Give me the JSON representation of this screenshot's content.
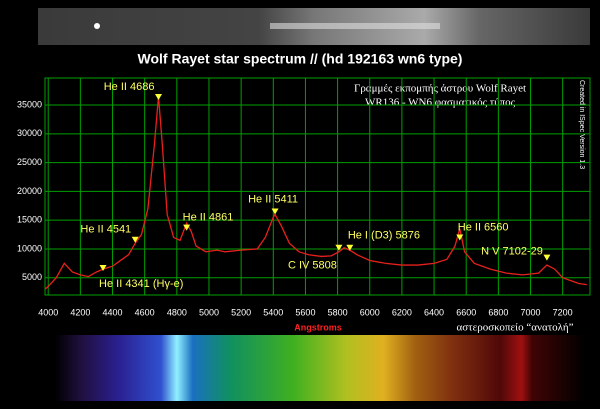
{
  "chart_data": {
    "type": "line",
    "title": "Wolf Rayet star spectrum // (hd 192163 wn6 type)",
    "subtitle_lines": [
      "Γραμμές εκπομπής άστρου Wolf Rayet",
      "WR136 - WN6 φασματικός τύπος"
    ],
    "side_note": "Created in ISpec Version 1.3",
    "x_label": "Angstroms",
    "credit": "αστεροσκοπείο “ανατολή”",
    "x": [
      3980,
      4000,
      4050,
      4100,
      4150,
      4200,
      4250,
      4300,
      4341,
      4400,
      4450,
      4500,
      4541,
      4580,
      4620,
      4660,
      4686,
      4710,
      4740,
      4780,
      4820,
      4861,
      4890,
      4920,
      4980,
      5050,
      5100,
      5200,
      5300,
      5350,
      5400,
      5411,
      5450,
      5500,
      5560,
      5620,
      5700,
      5760,
      5808,
      5840,
      5876,
      5920,
      6000,
      6100,
      6200,
      6300,
      6400,
      6480,
      6530,
      6560,
      6590,
      6650,
      6750,
      6850,
      6950,
      7050,
      7102,
      7150,
      7200,
      7250,
      7300,
      7350
    ],
    "series": [
      {
        "name": "spectrum",
        "color": "#e8201c",
        "values": [
          3000,
          3500,
          5000,
          7500,
          6000,
          5500,
          5200,
          6000,
          6500,
          7000,
          8000,
          9000,
          11000,
          12500,
          17000,
          28000,
          36500,
          28000,
          16000,
          12000,
          11500,
          14500,
          13000,
          10500,
          9500,
          9800,
          9500,
          9800,
          10000,
          12000,
          15500,
          16000,
          14000,
          11000,
          9500,
          9000,
          8700,
          8800,
          9500,
          10200,
          9800,
          9000,
          8000,
          7500,
          7200,
          7200,
          7500,
          8200,
          10500,
          13500,
          9500,
          7500,
          6500,
          5800,
          5500,
          5800,
          7200,
          6500,
          5000,
          4500,
          4000,
          3800
        ]
      }
    ],
    "annotations": [
      {
        "text": "He II 4341 (Hγ-e)",
        "x": 4341,
        "y": 6700
      },
      {
        "text": "He II 4541",
        "x": 4541,
        "y": 11600
      },
      {
        "text": "He II 4686",
        "x": 4686,
        "y": 36400
      },
      {
        "text": "He II 4861",
        "x": 4861,
        "y": 13700
      },
      {
        "text": "He II 5411",
        "x": 5411,
        "y": 16500
      },
      {
        "text": "C IV 5808",
        "x": 5808,
        "y": 10200
      },
      {
        "text": "He I (D3) 5876",
        "x": 5876,
        "y": 10200
      },
      {
        "text": "He II 6560",
        "x": 6560,
        "y": 12000
      },
      {
        "text": "N V 7102-29",
        "x": 7102,
        "y": 8500
      }
    ],
    "xlim": [
      3980,
      7370
    ],
    "ylim": [
      2000,
      39700
    ],
    "xticks": [
      4000,
      4200,
      4400,
      4600,
      4800,
      5000,
      5200,
      5400,
      5600,
      5800,
      6000,
      6200,
      6400,
      6600,
      6800,
      7000,
      7200
    ],
    "yticks": [
      5000,
      10000,
      15000,
      20000,
      25000,
      30000,
      35000
    ],
    "grid": true,
    "grid_color": "#00a000",
    "marker_color": "#ffff33"
  }
}
